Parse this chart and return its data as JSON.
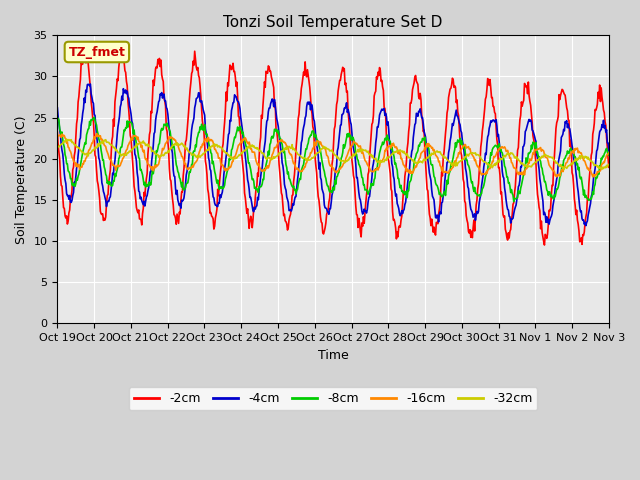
{
  "title": "Tonzi Soil Temperature Set D",
  "xlabel": "Time",
  "ylabel": "Soil Temperature (C)",
  "ylim": [
    0,
    35
  ],
  "yticks": [
    0,
    5,
    10,
    15,
    20,
    25,
    30,
    35
  ],
  "xtick_labels": [
    "Oct 19",
    "Oct 20",
    "Oct 21",
    "Oct 22",
    "Oct 23",
    "Oct 24",
    "Oct 25",
    "Oct 26",
    "Oct 27",
    "Oct 28",
    "Oct 29",
    "Oct 30",
    "Oct 31",
    "Nov 1",
    "Nov 2",
    "Nov 3"
  ],
  "series_colors": [
    "#ff0000",
    "#0000cc",
    "#00cc00",
    "#ff8800",
    "#cccc00"
  ],
  "series_labels": [
    "-2cm",
    "-4cm",
    "-8cm",
    "-16cm",
    "-32cm"
  ],
  "legend_label": "TZ_fmet",
  "background_color": "#d3d3d3",
  "plot_bg_color": "#e8e8e8",
  "n_days": 15,
  "samples_per_day": 48
}
